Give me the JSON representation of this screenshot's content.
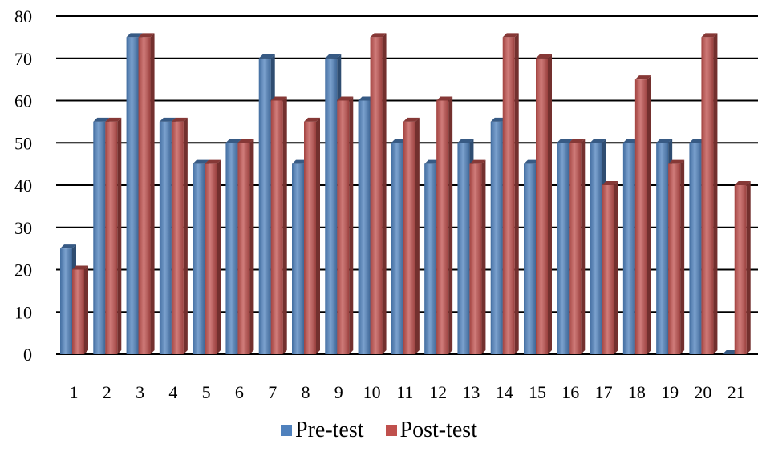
{
  "chart_data": {
    "type": "bar",
    "categories": [
      "1",
      "2",
      "3",
      "4",
      "5",
      "6",
      "7",
      "8",
      "9",
      "10",
      "11",
      "12",
      "13",
      "14",
      "15",
      "16",
      "17",
      "18",
      "19",
      "20",
      "21"
    ],
    "series": [
      {
        "name": "Pre-test",
        "color": "#4F81BD",
        "values": [
          25,
          55,
          75,
          55,
          45,
          50,
          70,
          45,
          70,
          60,
          50,
          45,
          50,
          55,
          45,
          50,
          50,
          50,
          50,
          50,
          0
        ]
      },
      {
        "name": "Post-test",
        "color": "#C0504D",
        "values": [
          20,
          55,
          75,
          55,
          45,
          50,
          60,
          55,
          60,
          75,
          55,
          60,
          45,
          75,
          70,
          50,
          40,
          65,
          45,
          75,
          40
        ]
      }
    ],
    "yticks": [
      0,
      10,
      20,
      30,
      40,
      50,
      60,
      70,
      80
    ],
    "ylim": [
      0,
      80
    ],
    "grid": true,
    "legend_position": "bottom"
  }
}
